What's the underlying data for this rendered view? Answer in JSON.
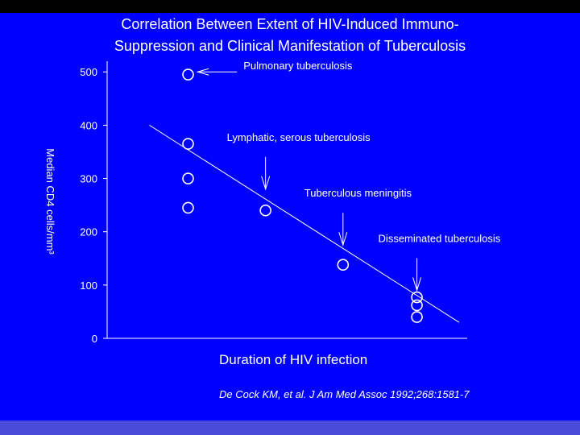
{
  "colors": {
    "background": "#0000FF",
    "frame": "#000000",
    "strip": "#4A4AD8",
    "ink": "#FFFFFF"
  },
  "chart_data": {
    "type": "scatter",
    "title_lines": [
      "Correlation Between Extent of HIV-Induced Immuno-",
      "Suppression and Clinical Manifestation of Tuberculosis"
    ],
    "xlabel": "Duration of HIV infection",
    "ylabel": "Median CD4 cells/mm³",
    "ylim": [
      0,
      520
    ],
    "y_ticks": [
      0,
      100,
      200,
      300,
      400,
      500
    ],
    "y_tick_labels": [
      "0",
      "100",
      "200",
      "300",
      "400",
      "500"
    ],
    "x_ticks_shown": false,
    "grid": false,
    "points": [
      {
        "x": 0.23,
        "y": 495
      },
      {
        "x": 0.23,
        "y": 365
      },
      {
        "x": 0.23,
        "y": 300
      },
      {
        "x": 0.23,
        "y": 245
      },
      {
        "x": 0.45,
        "y": 240
      },
      {
        "x": 0.67,
        "y": 138
      },
      {
        "x": 0.88,
        "y": 77
      },
      {
        "x": 0.88,
        "y": 62
      },
      {
        "x": 0.88,
        "y": 40
      }
    ],
    "trend_line": {
      "x": [
        0.12,
        1.0
      ],
      "y": [
        400,
        30
      ]
    },
    "annotations": [
      {
        "text": "Pulmonary tuberculosis",
        "target": {
          "x": 0.25,
          "y": 500
        },
        "arrow": "left"
      },
      {
        "text": "Lymphatic, serous tuberculosis",
        "target": {
          "x": 0.45,
          "y": 280
        },
        "arrow": "down"
      },
      {
        "text": "Tuberculous meningitis",
        "target": {
          "x": 0.67,
          "y": 175
        },
        "arrow": "down"
      },
      {
        "text": "Disseminated tuberculosis",
        "target": {
          "x": 0.88,
          "y": 90
        },
        "arrow": "down"
      }
    ],
    "citation": "De Cock KM, et al.  J Am Med Assoc 1992;268:1581-7"
  }
}
